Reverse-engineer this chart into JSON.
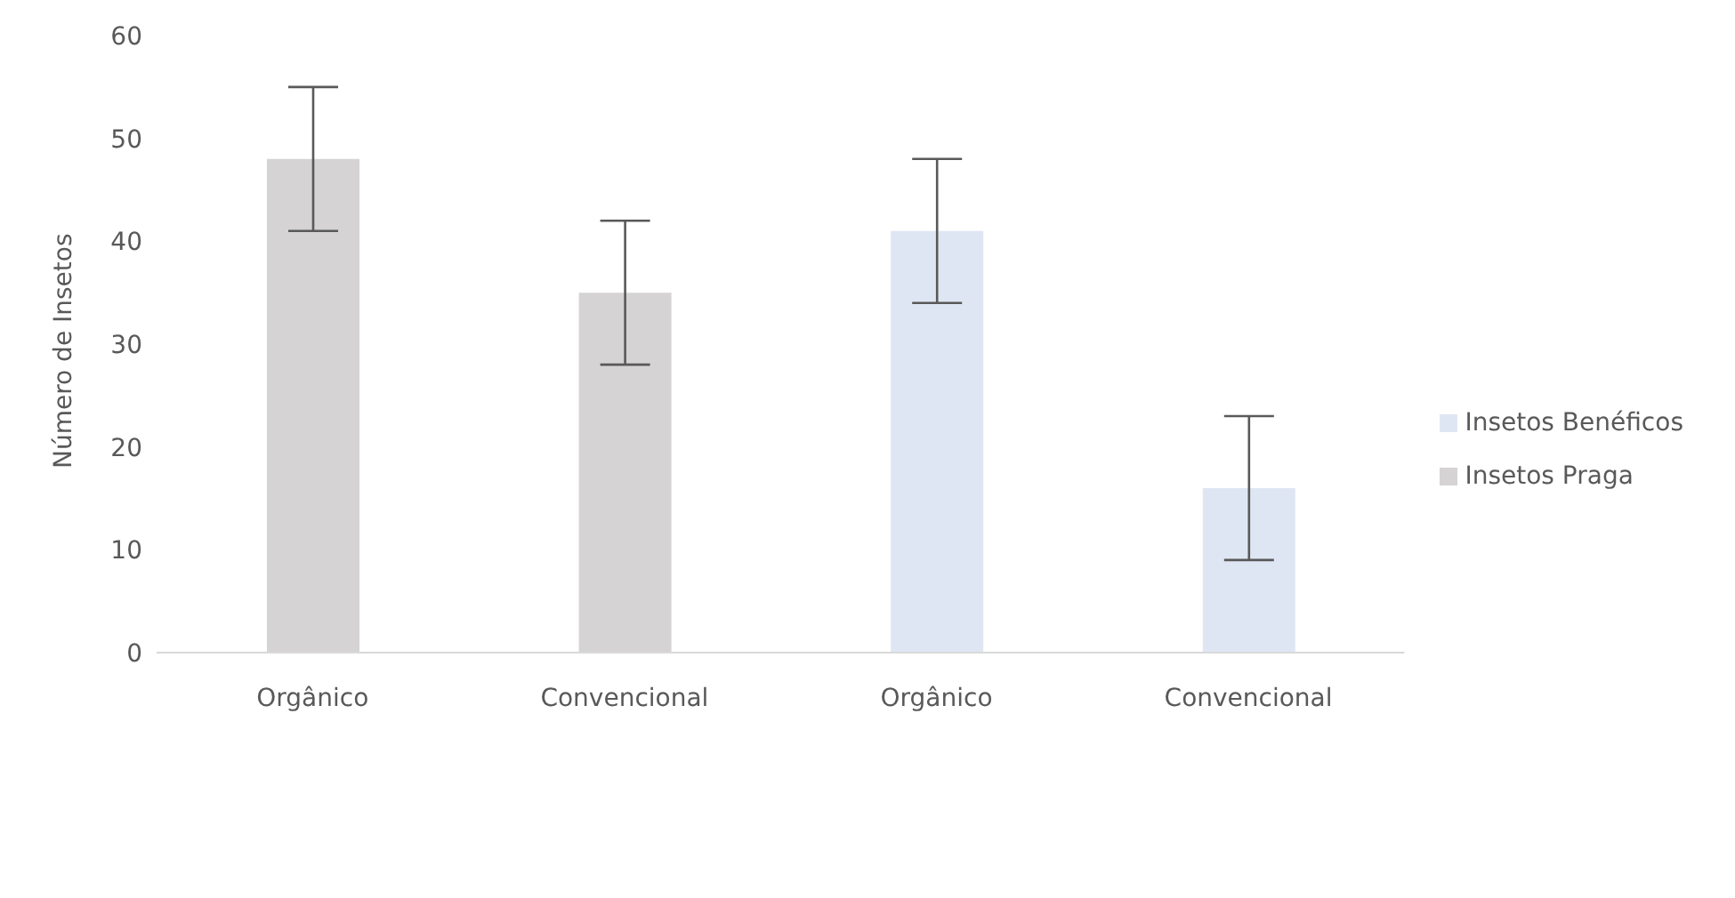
{
  "chart_data": {
    "type": "bar",
    "ylabel": "Número de Insetos",
    "categories": [
      "Orgânico",
      "Convencional",
      "Orgânico",
      "Convencional"
    ],
    "series": [
      {
        "name": "Insetos Praga",
        "color": "#d5d3d4",
        "values": [
          48,
          35,
          null,
          null
        ],
        "errors": [
          7,
          7,
          null,
          null
        ]
      },
      {
        "name": "Insetos Benéficos",
        "color": "#dfe6f3",
        "values": [
          null,
          null,
          41,
          16
        ],
        "errors": [
          null,
          null,
          7,
          7
        ]
      }
    ],
    "ylim": [
      0,
      60
    ],
    "yticks": [
      0,
      10,
      20,
      30,
      40,
      50,
      60
    ],
    "grid": false,
    "legend": "right"
  }
}
